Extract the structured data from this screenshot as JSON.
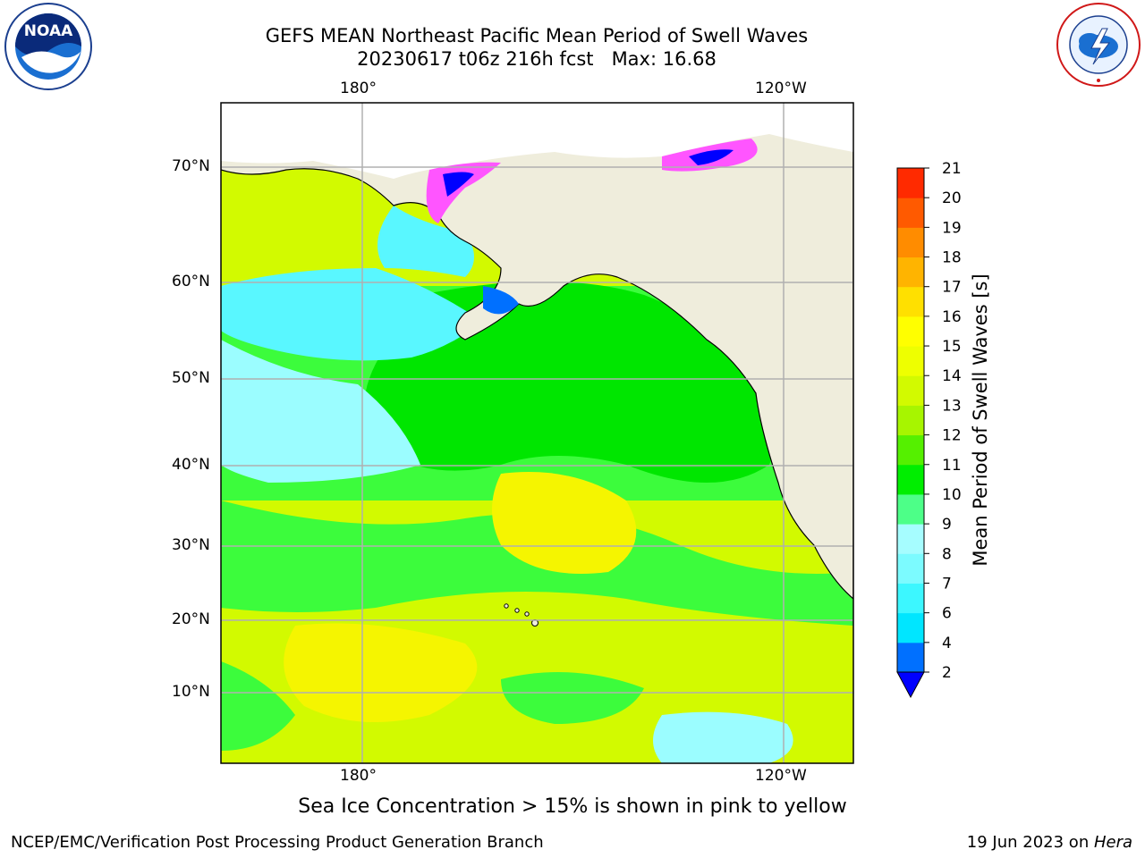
{
  "header": {
    "title_line1": "GEFS MEAN Northeast Pacific Mean Period of Swell Waves",
    "title_line2": "20230617 t06z 216h fcst   Max: 16.68"
  },
  "logos": {
    "left": "NOAA",
    "left_ring_text": "NATIONAL OCEANIC AND ATMOSPHERIC ADMINISTRATION · U.S. DEPARTMENT OF COMMERCE",
    "right_ring_text": "NATIONAL WEATHER SERVICE"
  },
  "map": {
    "lon_labels_top": [
      "180°",
      "120°W"
    ],
    "lon_labels_bottom": [
      "180°",
      "120°W"
    ],
    "lat_labels": [
      "70°N",
      "60°N",
      "50°N",
      "40°N",
      "30°N",
      "20°N",
      "10°N"
    ],
    "colors": {
      "land": "#efeddc",
      "grid": "#b0b0b0",
      "ocean_cyan": "#59f7ff",
      "ocean_lightcyan": "#9bfdff",
      "ocean_green": "#00e600",
      "ocean_lightgreen": "#3cfc3c",
      "ocean_yellowgreen": "#d2fa00",
      "ocean_yellow": "#f5f500",
      "ice_pink": "#ff55ff",
      "ice_blue": "#0000ff"
    }
  },
  "colorbar": {
    "label": "Mean Period of Swell Waves [s]",
    "ticks": [
      "2",
      "4",
      "6",
      "7",
      "8",
      "9",
      "10",
      "11",
      "12",
      "13",
      "14",
      "15",
      "16",
      "17",
      "18",
      "19",
      "20",
      "21"
    ],
    "colors": [
      "#0070ff",
      "#00e6ff",
      "#3cf7ff",
      "#7cfbff",
      "#a6fdff",
      "#4dff88",
      "#00ee00",
      "#55f000",
      "#a7f500",
      "#d2fa00",
      "#eeff00",
      "#ffff00",
      "#ffe000",
      "#ffb400",
      "#ff8c00",
      "#ff5a00",
      "#ff2a00"
    ],
    "extend_min_color": "#0000ff"
  },
  "notes": {
    "sea_ice": "Sea Ice Concentration > 15% is shown in pink to yellow"
  },
  "footer": {
    "left": "NCEP/EMC/Verification Post Processing Product Generation Branch",
    "right_date": "19 Jun 2023 on ",
    "right_host": "Hera"
  }
}
